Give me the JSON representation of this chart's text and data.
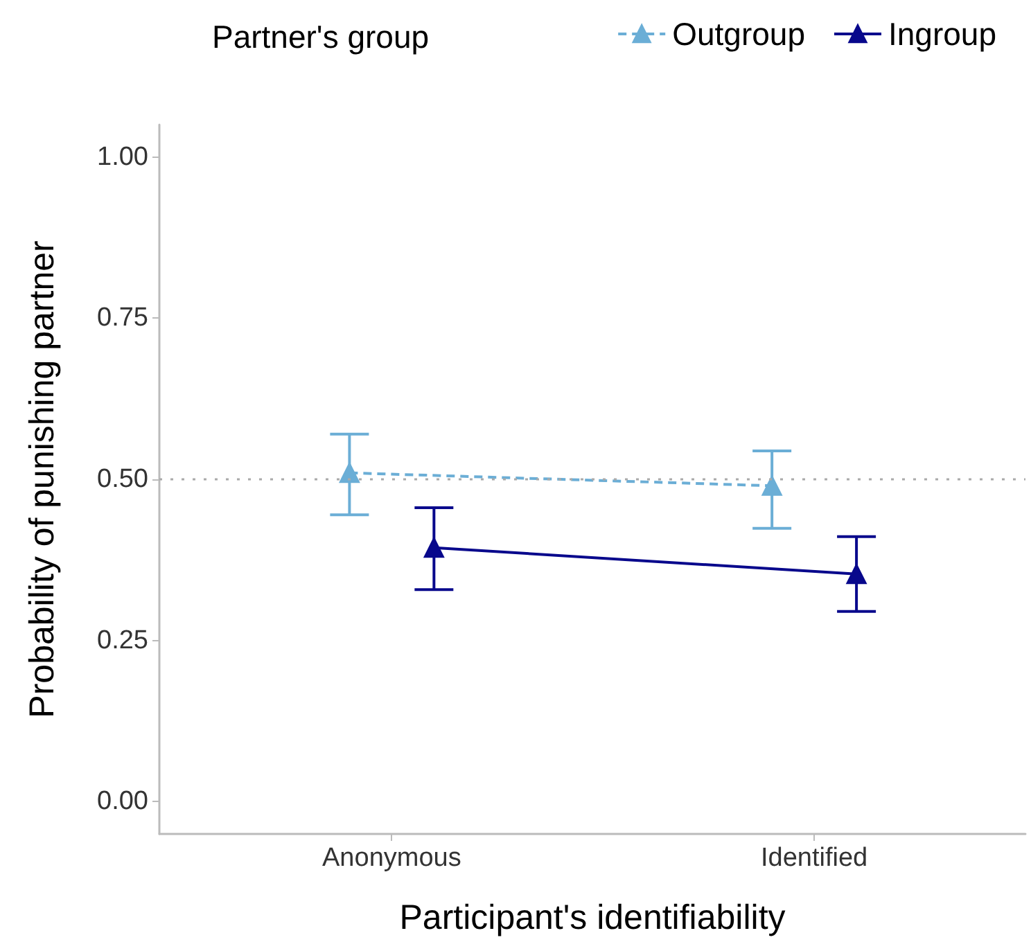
{
  "chart_data": {
    "type": "line",
    "xlabel": "Participant's identifiability",
    "ylabel": "Probability of punishing partner",
    "legend_title": "Partner's group",
    "categories": [
      "Anonymous",
      "Identified"
    ],
    "series": [
      {
        "name": "Outgroup",
        "color": "#6baed6",
        "values": [
          0.51,
          0.49
        ],
        "errors": [
          [
            0.445,
            0.57
          ],
          [
            0.424,
            0.544
          ]
        ],
        "line_style": "dashed"
      },
      {
        "name": "Ingroup",
        "color": "#08088c",
        "values": [
          0.394,
          0.353
        ],
        "errors": [
          [
            0.329,
            0.456
          ],
          [
            0.295,
            0.411
          ]
        ],
        "line_style": "solid"
      }
    ],
    "ylim": [
      -0.05,
      1.05
    ],
    "yticks": [
      {
        "value": 0,
        "label": "0.00"
      },
      {
        "value": 0.25,
        "label": "0.25"
      },
      {
        "value": 0.5,
        "label": "0.50"
      },
      {
        "value": 0.75,
        "label": "0.75"
      },
      {
        "value": 1,
        "label": "1.00"
      }
    ],
    "ref_lines": [
      {
        "axis": "y",
        "value": 0.5,
        "label": null,
        "color": "#aaaaaa",
        "line_style": "dotted"
      }
    ],
    "marker": "triangle",
    "grid": false,
    "legend": "top right"
  }
}
